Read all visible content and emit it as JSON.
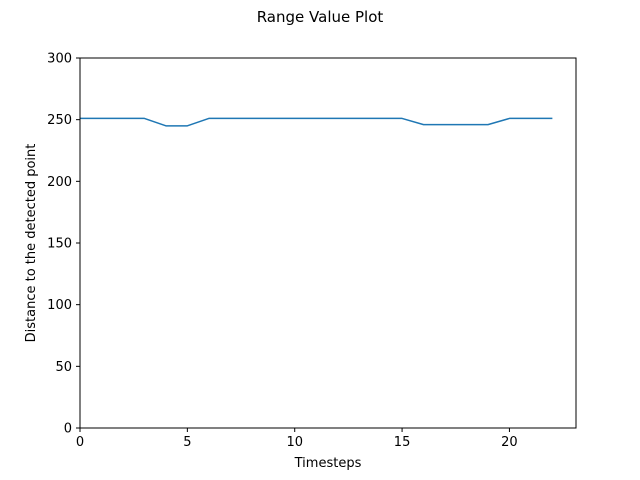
{
  "chart_data": {
    "type": "line",
    "title": "Range Value Plot",
    "xlabel": "Timesteps",
    "ylabel": "Distance to the detected point",
    "xlim": [
      0,
      23.1
    ],
    "ylim": [
      0,
      300
    ],
    "xticks": [
      0,
      5,
      10,
      15,
      20
    ],
    "yticks": [
      0,
      50,
      100,
      150,
      200,
      250,
      300
    ],
    "grid": false,
    "legend": "none",
    "series": [
      {
        "color": "#1f77b4",
        "x": [
          0,
          1,
          2,
          3,
          4,
          5,
          6,
          7,
          8,
          9,
          10,
          11,
          12,
          13,
          14,
          15,
          16,
          17,
          18,
          19,
          20,
          21,
          22
        ],
        "y": [
          251,
          251,
          251,
          251,
          245,
          245,
          251,
          251,
          251,
          251,
          251,
          251,
          251,
          251,
          251,
          251,
          246,
          246,
          246,
          246,
          251,
          251,
          251
        ]
      }
    ]
  }
}
